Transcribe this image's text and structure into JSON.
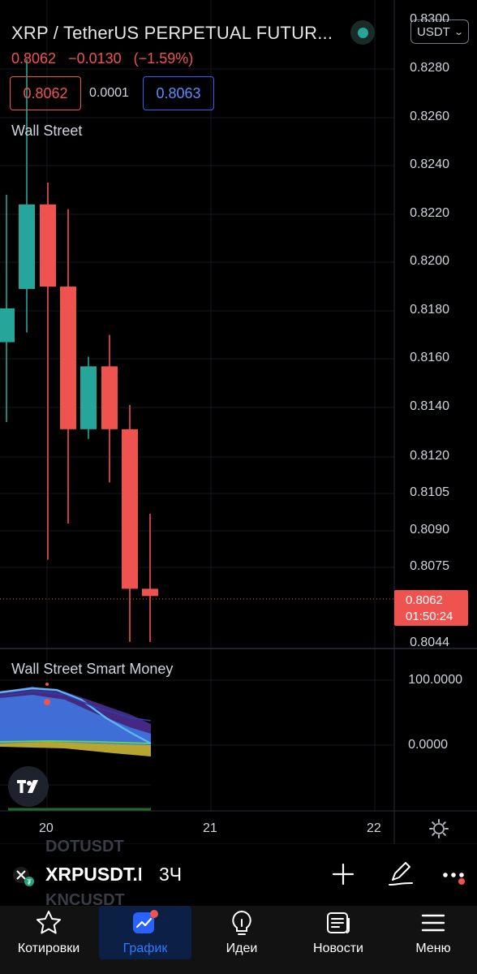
{
  "header": {
    "title": "XRP / TetherUS PERPETUAL FUTUR...",
    "currency": "USDT",
    "last_price": "0.8062",
    "change": "−0.0130",
    "change_pct": "(−1.59%)",
    "bid": "0.8062",
    "spread": "0.0001",
    "ask": "0.8063"
  },
  "colors": {
    "up": "#26a69a",
    "down": "#ef5350",
    "accent": "#2962ff",
    "background": "#000000"
  },
  "indicators": {
    "main": "Wall Street",
    "sub": "Wall Street Smart Money"
  },
  "price_axis": {
    "top_partial": "0.8300",
    "labels": [
      "0.8280",
      "0.8260",
      "0.8240",
      "0.8220",
      "0.8200",
      "0.8180",
      "0.8160",
      "0.8140",
      "0.8120",
      "0.8105",
      "0.8090",
      "0.8075",
      "0.8044"
    ],
    "last_price_tag": {
      "price": "0.8062",
      "countdown": "01:50:24"
    }
  },
  "sub_axis": {
    "labels": [
      "100.0000",
      "0.0000"
    ]
  },
  "time_axis": {
    "labels": [
      "20",
      "21",
      "22"
    ]
  },
  "chart_data": {
    "type": "candlestick",
    "candles": [
      {
        "o": 0.8167,
        "h": 0.8228,
        "l": 0.8134,
        "c": 0.8181
      },
      {
        "o": 0.8189,
        "h": 0.8284,
        "l": 0.8171,
        "c": 0.8224
      },
      {
        "o": 0.8224,
        "h": 0.8233,
        "l": 0.8077,
        "c": 0.819
      },
      {
        "o": 0.819,
        "h": 0.8222,
        "l": 0.8092,
        "c": 0.8131
      },
      {
        "o": 0.8131,
        "h": 0.8161,
        "l": 0.8127,
        "c": 0.8157
      },
      {
        "o": 0.8157,
        "h": 0.817,
        "l": 0.8109,
        "c": 0.8131
      },
      {
        "o": 0.8131,
        "h": 0.8141,
        "l": 0.8043,
        "c": 0.8065
      },
      {
        "o": 0.8065,
        "h": 0.8096,
        "l": 0.8043,
        "c": 0.8062
      }
    ],
    "x_ticks": [
      "20",
      "21",
      "22"
    ]
  },
  "toolbar": {
    "ghost_top": "DOTUSDT",
    "ghost_bottom": "KNCUSDT",
    "symbol": "XRPUSDT.P",
    "interval": "3Ч"
  },
  "tabs": [
    {
      "label": "Котировки",
      "icon": "star-icon"
    },
    {
      "label": "График",
      "icon": "chart-icon"
    },
    {
      "label": "Идеи",
      "icon": "lightbulb-icon"
    },
    {
      "label": "Новости",
      "icon": "newspaper-icon"
    },
    {
      "label": "Меню",
      "icon": "hamburger-icon"
    }
  ]
}
